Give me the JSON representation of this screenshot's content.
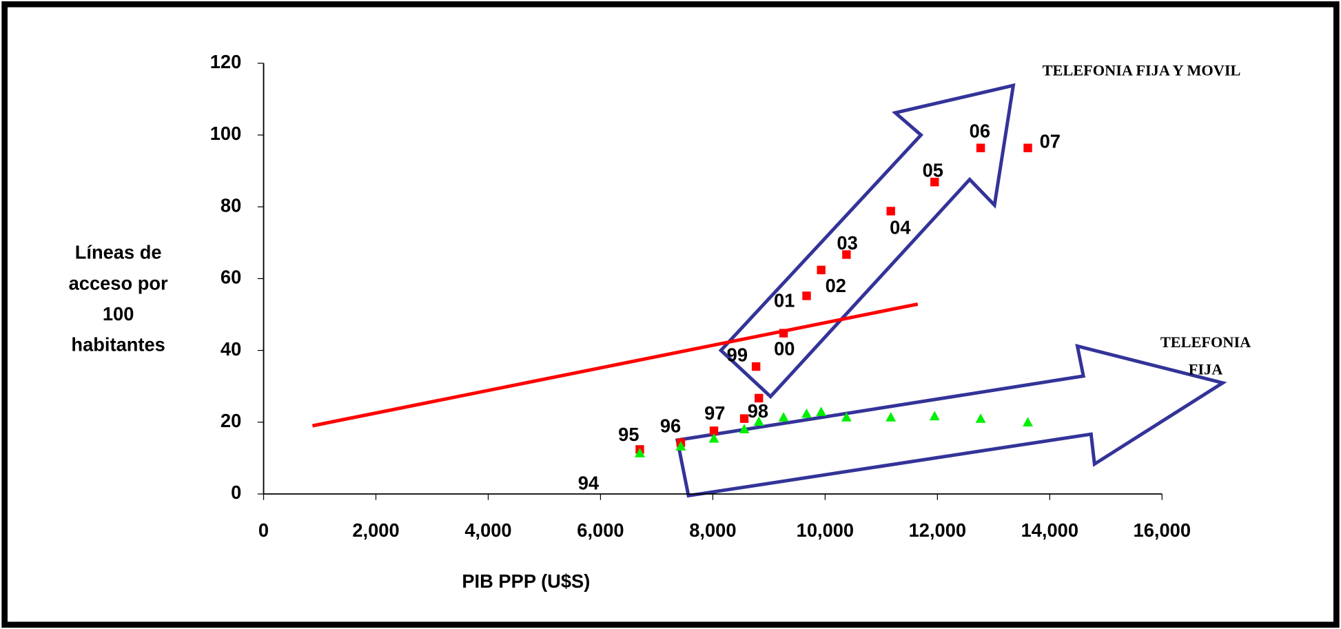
{
  "chart_data": {
    "type": "scatter",
    "xlabel": "PIB PPP (U$S)",
    "ylabel": [
      "Líneas de",
      "acceso por",
      "100",
      "habitantes"
    ],
    "xlim": [
      0,
      16000
    ],
    "xticks": [
      0,
      {
        "value": 2000,
        "label": "2,000"
      },
      {
        "value": 4000,
        "label": "4,000"
      },
      {
        "value": 6000,
        "label": "6,000"
      },
      {
        "value": 8000,
        "label": "8,000"
      },
      {
        "value": 10000,
        "label": "10,000"
      },
      {
        "value": 12000,
        "label": "12,000"
      },
      {
        "value": 14000,
        "label": "14,000"
      },
      {
        "value": 16000,
        "label": "16,000"
      }
    ],
    "ylim": [
      0,
      120
    ],
    "yticks": [
      0,
      20,
      40,
      60,
      80,
      100,
      120
    ],
    "grid": false,
    "series": [
      {
        "color": "#ff0000",
        "marker": "square",
        "x": [
          6700,
          7430,
          8020,
          8560,
          8820,
          8770,
          9260,
          9670,
          9930,
          10380,
          11170,
          11950,
          12770,
          13610
        ],
        "values": [
          12.4,
          14.3,
          17.6,
          21,
          26.7,
          35.5,
          44.8,
          55.2,
          62.4,
          66.7,
          78.8,
          86.9,
          96.4,
          96.4
        ],
        "point_labels": [
          "95",
          "96",
          "97",
          "98",
          null,
          "99",
          "00",
          "01",
          "02",
          "03",
          "04",
          "05",
          "06",
          "07"
        ]
      },
      {
        "color": "#00ee00",
        "marker": "triangle",
        "x": [
          6700,
          7430,
          8020,
          8560,
          8820,
          9260,
          9670,
          9930,
          10380,
          11170,
          11950,
          12770,
          13610
        ],
        "values": [
          11.4,
          13.3,
          15.5,
          18.1,
          20.2,
          21.4,
          22.4,
          22.9,
          21.4,
          21.4,
          21.7,
          21,
          20
        ]
      },
      {
        "color": "#ff0000",
        "marker": "line",
        "x": [
          870,
          11650
        ],
        "values": [
          19,
          52.9
        ]
      }
    ],
    "annotations": [
      "94",
      "TELEFONIA FIJA Y MOVIL",
      [
        "TELEFONIA",
        "FIJA"
      ]
    ]
  }
}
